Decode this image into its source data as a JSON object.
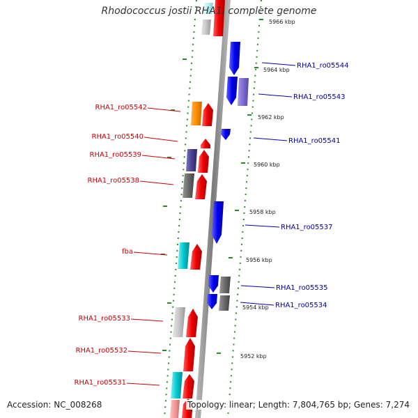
{
  "title": "Rhodococcus jostii RHA1, complete genome",
  "accession": "Accession: NC_008268",
  "topology": "Topology: linear; Length: 7,804,765 bp; Genes: 7,274",
  "colors": {
    "plus_strand_label": "#cc0000",
    "minus_strand_label": "#000099",
    "spine": "#8a8a8a",
    "tick": "#2a8a2a"
  },
  "kbp_labels": [
    {
      "text": "5966 kbp",
      "kbp": 5966
    },
    {
      "text": "5964 kbp",
      "kbp": 5964
    },
    {
      "text": "5962 kbp",
      "kbp": 5962
    },
    {
      "text": "5960 kbp",
      "kbp": 5960
    },
    {
      "text": "5958 kbp",
      "kbp": 5958
    },
    {
      "text": "5956 kbp",
      "kbp": 5956
    },
    {
      "text": "5954 kbp",
      "kbp": 5954
    },
    {
      "text": "5952 kbp",
      "kbp": 5952
    }
  ],
  "gene_labels_left": [
    {
      "name": "RHA1_ro05542"
    },
    {
      "name": "RHA1_ro05540"
    },
    {
      "name": "RHA1_ro05539"
    },
    {
      "name": "RHA1_ro05538"
    },
    {
      "name": "fba"
    },
    {
      "name": "RHA1_ro05533"
    },
    {
      "name": "RHA1_ro05532"
    },
    {
      "name": "RHA1_ro05531"
    }
  ],
  "gene_labels_right": [
    {
      "name": "RHA1_ro05544"
    },
    {
      "name": "RHA1_ro05543"
    },
    {
      "name": "RHA1_ro05541"
    },
    {
      "name": "RHA1_ro05537"
    },
    {
      "name": "RHA1_ro05535"
    },
    {
      "name": "RHA1_ro05534"
    }
  ]
}
